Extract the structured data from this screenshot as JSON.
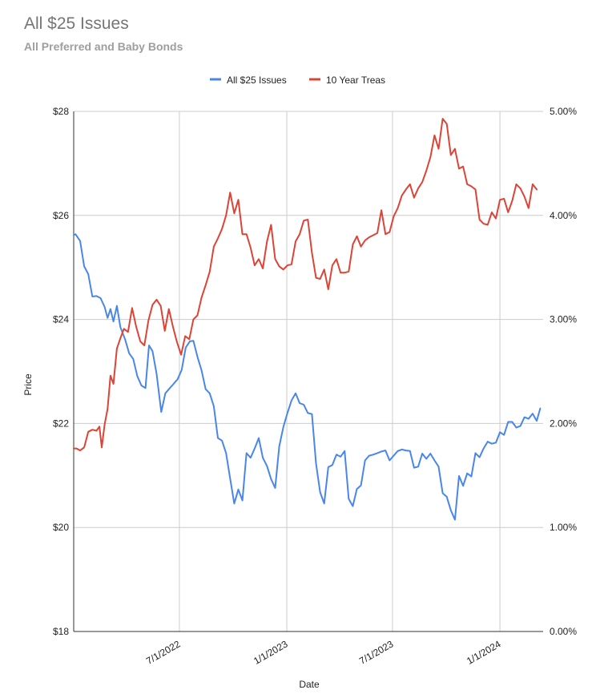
{
  "chart_data": {
    "type": "line",
    "title": "All $25 Issues",
    "subtitle": "All Preferred and Baby Bonds",
    "xlabel": "Date",
    "ylabel": "Price",
    "y_left_ticks": [
      "$18",
      "$20",
      "$22",
      "$24",
      "$26",
      "$28"
    ],
    "y_left_range": [
      18,
      28
    ],
    "y_right_ticks": [
      "0.00%",
      "1.00%",
      "2.00%",
      "3.00%",
      "4.00%",
      "5.00%"
    ],
    "y_right_range": [
      0,
      5
    ],
    "x_ticks": [
      {
        "label": "7/1/2022",
        "date": "2022-07-01"
      },
      {
        "label": "1/1/2023",
        "date": "2023-01-01"
      },
      {
        "label": "7/1/2023",
        "date": "2023-07-01"
      },
      {
        "label": "1/1/2024",
        "date": "2024-01-01"
      }
    ],
    "x_range": [
      "2022-01-01",
      "2024-03-15"
    ],
    "grid": true,
    "legend_position": "top",
    "series": [
      {
        "name": "All $25 Issues",
        "axis": "left",
        "color": "#4a86e8",
        "points": [
          [
            "2022-01-01",
            25.62
          ],
          [
            "2022-01-04",
            25.64
          ],
          [
            "2022-01-12",
            25.51
          ],
          [
            "2022-01-19",
            25.02
          ],
          [
            "2022-01-26",
            24.87
          ],
          [
            "2022-02-02",
            24.44
          ],
          [
            "2022-02-09",
            24.45
          ],
          [
            "2022-02-16",
            24.41
          ],
          [
            "2022-02-23",
            24.24
          ],
          [
            "2022-02-28",
            24.03
          ],
          [
            "2022-03-05",
            24.2
          ],
          [
            "2022-03-10",
            23.96
          ],
          [
            "2022-03-16",
            24.26
          ],
          [
            "2022-03-22",
            23.85
          ],
          [
            "2022-03-30",
            23.62
          ],
          [
            "2022-04-06",
            23.35
          ],
          [
            "2022-04-13",
            23.24
          ],
          [
            "2022-04-20",
            22.91
          ],
          [
            "2022-04-27",
            22.73
          ],
          [
            "2022-05-04",
            22.68
          ],
          [
            "2022-05-10",
            23.5
          ],
          [
            "2022-05-16",
            23.39
          ],
          [
            "2022-05-23",
            22.95
          ],
          [
            "2022-05-31",
            22.22
          ],
          [
            "2022-06-07",
            22.58
          ],
          [
            "2022-06-14",
            22.67
          ],
          [
            "2022-06-21",
            22.76
          ],
          [
            "2022-06-28",
            22.85
          ],
          [
            "2022-07-05",
            23.03
          ],
          [
            "2022-07-12",
            23.46
          ],
          [
            "2022-07-19",
            23.58
          ],
          [
            "2022-07-25",
            23.59
          ],
          [
            "2022-08-01",
            23.28
          ],
          [
            "2022-08-08",
            23.02
          ],
          [
            "2022-08-15",
            22.66
          ],
          [
            "2022-08-22",
            22.58
          ],
          [
            "2022-08-29",
            22.33
          ],
          [
            "2022-09-05",
            21.72
          ],
          [
            "2022-09-12",
            21.67
          ],
          [
            "2022-09-19",
            21.43
          ],
          [
            "2022-09-26",
            20.94
          ],
          [
            "2022-10-03",
            20.46
          ],
          [
            "2022-10-10",
            20.73
          ],
          [
            "2022-10-17",
            20.52
          ],
          [
            "2022-10-24",
            21.43
          ],
          [
            "2022-10-31",
            21.34
          ],
          [
            "2022-11-07",
            21.52
          ],
          [
            "2022-11-14",
            21.72
          ],
          [
            "2022-11-21",
            21.34
          ],
          [
            "2022-11-28",
            21.18
          ],
          [
            "2022-12-05",
            20.93
          ],
          [
            "2022-12-12",
            20.76
          ],
          [
            "2022-12-19",
            21.56
          ],
          [
            "2022-12-26",
            21.93
          ],
          [
            "2023-01-02",
            22.2
          ],
          [
            "2023-01-09",
            22.44
          ],
          [
            "2023-01-16",
            22.58
          ],
          [
            "2023-01-23",
            22.39
          ],
          [
            "2023-01-30",
            22.36
          ],
          [
            "2023-02-06",
            22.2
          ],
          [
            "2023-02-13",
            22.18
          ],
          [
            "2023-02-20",
            21.23
          ],
          [
            "2023-02-27",
            20.68
          ],
          [
            "2023-03-06",
            20.46
          ],
          [
            "2023-03-13",
            21.16
          ],
          [
            "2023-03-20",
            21.2
          ],
          [
            "2023-03-27",
            21.4
          ],
          [
            "2023-04-03",
            21.36
          ],
          [
            "2023-04-10",
            21.47
          ],
          [
            "2023-04-17",
            20.55
          ],
          [
            "2023-04-24",
            20.41
          ],
          [
            "2023-05-01",
            20.74
          ],
          [
            "2023-05-08",
            20.81
          ],
          [
            "2023-05-15",
            21.29
          ],
          [
            "2023-05-22",
            21.38
          ],
          [
            "2023-05-29",
            21.4
          ],
          [
            "2023-06-05",
            21.43
          ],
          [
            "2023-06-12",
            21.46
          ],
          [
            "2023-06-19",
            21.48
          ],
          [
            "2023-06-26",
            21.29
          ],
          [
            "2023-07-03",
            21.38
          ],
          [
            "2023-07-10",
            21.47
          ],
          [
            "2023-07-17",
            21.5
          ],
          [
            "2023-07-24",
            21.48
          ],
          [
            "2023-07-31",
            21.47
          ],
          [
            "2023-08-07",
            21.15
          ],
          [
            "2023-08-14",
            21.17
          ],
          [
            "2023-08-21",
            21.42
          ],
          [
            "2023-08-28",
            21.32
          ],
          [
            "2023-09-04",
            21.42
          ],
          [
            "2023-09-11",
            21.29
          ],
          [
            "2023-09-18",
            21.17
          ],
          [
            "2023-09-25",
            20.66
          ],
          [
            "2023-10-02",
            20.59
          ],
          [
            "2023-10-09",
            20.33
          ],
          [
            "2023-10-16",
            20.15
          ],
          [
            "2023-10-23",
            20.99
          ],
          [
            "2023-10-30",
            20.8
          ],
          [
            "2023-11-06",
            21.04
          ],
          [
            "2023-11-13",
            20.98
          ],
          [
            "2023-11-20",
            21.43
          ],
          [
            "2023-11-27",
            21.35
          ],
          [
            "2023-12-04",
            21.52
          ],
          [
            "2023-12-11",
            21.65
          ],
          [
            "2023-12-18",
            21.61
          ],
          [
            "2023-12-25",
            21.63
          ],
          [
            "2024-01-01",
            21.83
          ],
          [
            "2024-01-08",
            21.78
          ],
          [
            "2024-01-15",
            22.03
          ],
          [
            "2024-01-22",
            22.03
          ],
          [
            "2024-01-29",
            21.92
          ],
          [
            "2024-02-05",
            21.95
          ],
          [
            "2024-02-12",
            22.12
          ],
          [
            "2024-02-19",
            22.09
          ],
          [
            "2024-02-26",
            22.19
          ],
          [
            "2024-03-04",
            22.05
          ],
          [
            "2024-03-10",
            22.29
          ]
        ]
      },
      {
        "name": "10 Year Treas",
        "axis": "right",
        "color": "#db4437",
        "points": [
          [
            "2022-01-01",
            1.76
          ],
          [
            "2022-01-06",
            1.76
          ],
          [
            "2022-01-12",
            1.74
          ],
          [
            "2022-01-19",
            1.77
          ],
          [
            "2022-01-26",
            1.92
          ],
          [
            "2022-02-02",
            1.94
          ],
          [
            "2022-02-09",
            1.93
          ],
          [
            "2022-02-14",
            1.97
          ],
          [
            "2022-02-18",
            1.77
          ],
          [
            "2022-02-23",
            1.99
          ],
          [
            "2022-02-28",
            2.14
          ],
          [
            "2022-03-05",
            2.46
          ],
          [
            "2022-03-10",
            2.38
          ],
          [
            "2022-03-16",
            2.72
          ],
          [
            "2022-03-22",
            2.82
          ],
          [
            "2022-03-28",
            2.91
          ],
          [
            "2022-04-04",
            2.88
          ],
          [
            "2022-04-11",
            3.11
          ],
          [
            "2022-04-18",
            2.93
          ],
          [
            "2022-04-25",
            2.79
          ],
          [
            "2022-05-02",
            2.75
          ],
          [
            "2022-05-09",
            2.99
          ],
          [
            "2022-05-16",
            3.14
          ],
          [
            "2022-05-23",
            3.19
          ],
          [
            "2022-05-30",
            3.13
          ],
          [
            "2022-06-06",
            2.89
          ],
          [
            "2022-06-13",
            3.1
          ],
          [
            "2022-06-20",
            2.93
          ],
          [
            "2022-06-27",
            2.78
          ],
          [
            "2022-07-04",
            2.66
          ],
          [
            "2022-07-11",
            2.84
          ],
          [
            "2022-07-18",
            2.81
          ],
          [
            "2022-07-25",
            3.0
          ],
          [
            "2022-08-01",
            3.04
          ],
          [
            "2022-08-08",
            3.21
          ],
          [
            "2022-08-15",
            3.33
          ],
          [
            "2022-08-22",
            3.46
          ],
          [
            "2022-08-29",
            3.7
          ],
          [
            "2022-09-05",
            3.78
          ],
          [
            "2022-09-12",
            3.87
          ],
          [
            "2022-09-19",
            4.0
          ],
          [
            "2022-09-26",
            4.22
          ],
          [
            "2022-10-03",
            4.02
          ],
          [
            "2022-10-10",
            4.15
          ],
          [
            "2022-10-17",
            3.82
          ],
          [
            "2022-10-24",
            3.82
          ],
          [
            "2022-10-31",
            3.69
          ],
          [
            "2022-11-07",
            3.52
          ],
          [
            "2022-11-14",
            3.58
          ],
          [
            "2022-11-21",
            3.49
          ],
          [
            "2022-11-28",
            3.75
          ],
          [
            "2022-12-05",
            3.91
          ],
          [
            "2022-12-12",
            3.58
          ],
          [
            "2022-12-19",
            3.51
          ],
          [
            "2022-12-26",
            3.48
          ],
          [
            "2023-01-02",
            3.52
          ],
          [
            "2023-01-09",
            3.53
          ],
          [
            "2023-01-16",
            3.75
          ],
          [
            "2023-01-23",
            3.82
          ],
          [
            "2023-01-30",
            3.95
          ],
          [
            "2023-02-06",
            3.96
          ],
          [
            "2023-02-13",
            3.64
          ],
          [
            "2023-02-20",
            3.4
          ],
          [
            "2023-02-27",
            3.39
          ],
          [
            "2023-03-06",
            3.48
          ],
          [
            "2023-03-13",
            3.29
          ],
          [
            "2023-03-20",
            3.52
          ],
          [
            "2023-03-27",
            3.58
          ],
          [
            "2023-04-03",
            3.45
          ],
          [
            "2023-04-10",
            3.45
          ],
          [
            "2023-04-17",
            3.46
          ],
          [
            "2023-04-24",
            3.72
          ],
          [
            "2023-05-01",
            3.8
          ],
          [
            "2023-05-08",
            3.7
          ],
          [
            "2023-05-15",
            3.76
          ],
          [
            "2023-05-22",
            3.79
          ],
          [
            "2023-05-29",
            3.81
          ],
          [
            "2023-06-05",
            3.83
          ],
          [
            "2023-06-12",
            4.05
          ],
          [
            "2023-06-19",
            3.82
          ],
          [
            "2023-06-26",
            3.84
          ],
          [
            "2023-07-03",
            3.99
          ],
          [
            "2023-07-10",
            4.07
          ],
          [
            "2023-07-17",
            4.19
          ],
          [
            "2023-07-24",
            4.25
          ],
          [
            "2023-07-31",
            4.3
          ],
          [
            "2023-08-07",
            4.17
          ],
          [
            "2023-08-14",
            4.26
          ],
          [
            "2023-08-21",
            4.32
          ],
          [
            "2023-08-28",
            4.43
          ],
          [
            "2023-09-04",
            4.56
          ],
          [
            "2023-09-11",
            4.77
          ],
          [
            "2023-09-18",
            4.64
          ],
          [
            "2023-09-25",
            4.93
          ],
          [
            "2023-10-02",
            4.88
          ],
          [
            "2023-10-09",
            4.58
          ],
          [
            "2023-10-16",
            4.64
          ],
          [
            "2023-10-23",
            4.45
          ],
          [
            "2023-10-30",
            4.47
          ],
          [
            "2023-11-06",
            4.3
          ],
          [
            "2023-11-13",
            4.28
          ],
          [
            "2023-11-20",
            4.25
          ],
          [
            "2023-11-27",
            3.96
          ],
          [
            "2023-12-04",
            3.92
          ],
          [
            "2023-12-11",
            3.91
          ],
          [
            "2023-12-18",
            4.03
          ],
          [
            "2023-12-25",
            3.97
          ],
          [
            "2024-01-01",
            4.15
          ],
          [
            "2024-01-08",
            4.16
          ],
          [
            "2024-01-15",
            4.03
          ],
          [
            "2024-01-22",
            4.14
          ],
          [
            "2024-01-29",
            4.3
          ],
          [
            "2024-02-05",
            4.26
          ],
          [
            "2024-02-12",
            4.18
          ],
          [
            "2024-02-19",
            4.07
          ],
          [
            "2024-02-26",
            4.3
          ],
          [
            "2024-03-04",
            4.25
          ]
        ]
      }
    ]
  }
}
